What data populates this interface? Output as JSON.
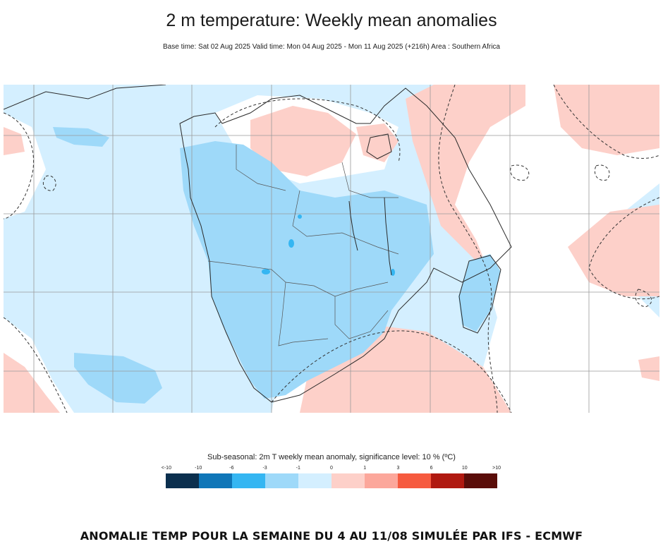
{
  "header": {
    "title": "2 m temperature: Weekly mean anomalies",
    "subtitle": "Base time: Sat 02 Aug 2025 Valid time: Mon 04 Aug 2025 - Mon 11 Aug 2025 (+216h) Area : Southern Africa"
  },
  "legend": {
    "title": "Sub-seasonal: 2m T weekly mean anomaly, significance level: 10 % (ºC)",
    "labels": [
      "<-10",
      "-10",
      "-6",
      "-3",
      "-1",
      "0",
      "1",
      "3",
      "6",
      "10",
      ">10"
    ],
    "colors": [
      "#0b2f4e",
      "#0f76b8",
      "#35b6f2",
      "#9ed9f9",
      "#d4efff",
      "#fdd0c9",
      "#fca79b",
      "#f65a3f",
      "#b01910",
      "#5a0d09"
    ]
  },
  "map": {
    "land_color": "#9ed9f9",
    "ocean_color": "#d4efff",
    "warm_color": "#fdd0c9",
    "neutral_color": "#ffffff"
  },
  "caption": "ANOMALIE TEMP POUR LA SEMAINE DU 4 AU 11/08 SIMULÉE PAR IFS  - ECMWF"
}
